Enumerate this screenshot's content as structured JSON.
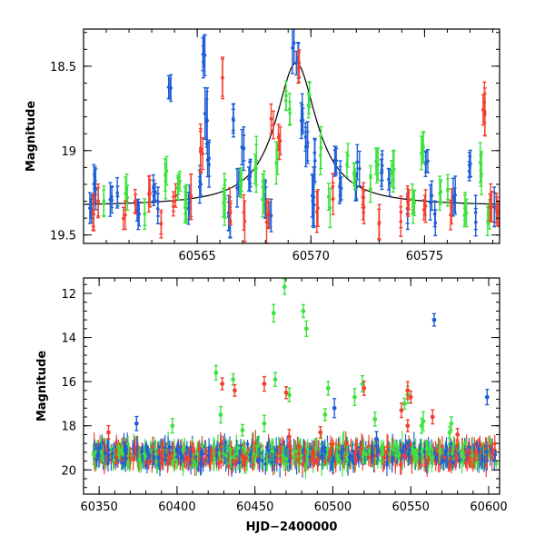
{
  "colors": {
    "blue": "#1f5fd6",
    "green": "#3ee23e",
    "red": "#f2412f",
    "model": "#000000"
  },
  "chart_data": [
    {
      "type": "scatter",
      "panel": "top",
      "title": "",
      "xlabel": "",
      "ylabel": "Magnitude",
      "xlim": [
        60560.0,
        60578.3
      ],
      "ylim": [
        19.55,
        18.28
      ],
      "y_inverted": true,
      "x_ticks": [
        60565,
        60570,
        60575
      ],
      "x_tick_labels": [
        "60565",
        "60570",
        "60575"
      ],
      "y_ticks": [
        18.5,
        19,
        19.5
      ],
      "y_tick_labels": [
        "18.5",
        "19",
        "19.5"
      ],
      "model_curve": {
        "baseline": 19.33,
        "peak_x": 60569.35,
        "peak_mag": 18.48,
        "width": 1.1
      },
      "series": [
        {
          "color": "blue",
          "points": [
            [
              60560.3,
              19.33,
              0.07
            ],
            [
              60560.5,
              19.2,
              0.1
            ],
            [
              60561.2,
              19.3,
              0.08
            ],
            [
              60561.5,
              19.25,
              0.07
            ],
            [
              60562.4,
              19.35,
              0.08
            ],
            [
              60563.1,
              19.25,
              0.07
            ],
            [
              60563.3,
              19.32,
              0.09
            ],
            [
              60563.8,
              18.62,
              0.07
            ],
            [
              60564.6,
              19.33,
              0.1
            ],
            [
              60565.1,
              19.2,
              0.08
            ],
            [
              60565.3,
              18.45,
              0.1
            ],
            [
              60565.4,
              18.8,
              0.15
            ],
            [
              60565.5,
              19.05,
              0.12
            ],
            [
              60566.4,
              19.4,
              0.1
            ],
            [
              60566.6,
              18.85,
              0.08
            ],
            [
              60566.8,
              19.2,
              0.1
            ],
            [
              60567.0,
              19.0,
              0.1
            ],
            [
              60567.3,
              19.15,
              0.08
            ],
            [
              60568.0,
              19.3,
              0.1
            ],
            [
              60568.2,
              19.35,
              0.09
            ],
            [
              60569.2,
              18.4,
              0.12
            ],
            [
              60569.4,
              18.45,
              0.08
            ],
            [
              60569.6,
              18.8,
              0.1
            ],
            [
              60569.8,
              18.95,
              0.1
            ],
            [
              60570.1,
              19.3,
              0.15
            ],
            [
              60570.2,
              19.05,
              0.1
            ],
            [
              60571.1,
              19.05,
              0.08
            ],
            [
              60571.3,
              19.2,
              0.08
            ],
            [
              60572.0,
              19.2,
              0.07
            ],
            [
              60572.1,
              19.1,
              0.08
            ],
            [
              60573.1,
              19.1,
              0.08
            ],
            [
              60573.4,
              19.2,
              0.08
            ],
            [
              60574.2,
              19.35,
              0.08
            ],
            [
              60575.1,
              19.05,
              0.08
            ],
            [
              60575.3,
              19.3,
              0.1
            ],
            [
              60575.5,
              19.4,
              0.1
            ],
            [
              60576.3,
              19.3,
              0.1
            ],
            [
              60577.0,
              19.1,
              0.08
            ],
            [
              60577.2,
              19.4,
              0.1
            ],
            [
              60578.1,
              19.3,
              0.1
            ]
          ]
        },
        {
          "color": "green",
          "points": [
            [
              60560.9,
              19.3,
              0.08
            ],
            [
              60561.9,
              19.25,
              0.08
            ],
            [
              60562.7,
              19.35,
              0.07
            ],
            [
              60563.6,
              19.15,
              0.08
            ],
            [
              60564.2,
              19.2,
              0.08
            ],
            [
              60564.5,
              19.3,
              0.1
            ],
            [
              60566.2,
              19.3,
              0.1
            ],
            [
              60566.9,
              19.2,
              0.1
            ],
            [
              60567.6,
              19.1,
              0.12
            ],
            [
              60567.9,
              19.25,
              0.1
            ],
            [
              60568.5,
              19.05,
              0.1
            ],
            [
              60568.9,
              18.7,
              0.08
            ],
            [
              60569.1,
              18.75,
              0.08
            ],
            [
              60569.9,
              18.7,
              0.07
            ],
            [
              60570.4,
              19.0,
              0.1
            ],
            [
              60570.8,
              19.3,
              0.1
            ],
            [
              60571.6,
              19.05,
              0.08
            ],
            [
              60571.9,
              19.15,
              0.07
            ],
            [
              60572.6,
              19.2,
              0.08
            ],
            [
              60572.9,
              19.05,
              0.08
            ],
            [
              60573.6,
              19.1,
              0.1
            ],
            [
              60574.5,
              19.3,
              0.08
            ],
            [
              60574.9,
              19.0,
              0.08
            ],
            [
              60575.7,
              19.25,
              0.08
            ],
            [
              60576.0,
              19.2,
              0.08
            ],
            [
              60576.8,
              19.35,
              0.08
            ],
            [
              60577.5,
              19.1,
              0.1
            ],
            [
              60577.8,
              19.4,
              0.08
            ]
          ]
        },
        {
          "color": "red",
          "points": [
            [
              60560.4,
              19.35,
              0.08
            ],
            [
              60560.7,
              19.3,
              0.1
            ],
            [
              60561.8,
              19.4,
              0.07
            ],
            [
              60562.3,
              19.3,
              0.08
            ],
            [
              60562.9,
              19.25,
              0.1
            ],
            [
              60563.4,
              19.4,
              0.08
            ],
            [
              60564.0,
              19.3,
              0.08
            ],
            [
              60564.7,
              19.3,
              0.12
            ],
            [
              60565.2,
              19.0,
              0.12
            ],
            [
              60566.1,
              18.55,
              0.1
            ],
            [
              60566.5,
              19.35,
              0.1
            ],
            [
              60567.1,
              19.4,
              0.1
            ],
            [
              60568.1,
              19.4,
              0.1
            ],
            [
              60568.3,
              18.85,
              0.1
            ],
            [
              60568.6,
              18.95,
              0.08
            ],
            [
              60569.5,
              18.5,
              0.07
            ],
            [
              60570.3,
              19.35,
              0.1
            ],
            [
              60571.0,
              19.25,
              0.08
            ],
            [
              60572.3,
              19.3,
              0.08
            ],
            [
              60573.0,
              19.4,
              0.1
            ],
            [
              60574.0,
              19.4,
              0.08
            ],
            [
              60574.3,
              19.3,
              0.08
            ],
            [
              60575.0,
              19.35,
              0.08
            ],
            [
              60576.2,
              19.35,
              0.08
            ],
            [
              60577.6,
              18.75,
              0.12
            ],
            [
              60577.9,
              19.3,
              0.1
            ],
            [
              60578.2,
              19.35,
              0.08
            ]
          ]
        }
      ]
    },
    {
      "type": "scatter",
      "panel": "bottom",
      "title": "",
      "xlabel": "HJD−2400000",
      "ylabel": "Magnitude",
      "xlim": [
        60340,
        60607
      ],
      "ylim": [
        21.1,
        11.3
      ],
      "y_inverted": true,
      "x_ticks": [
        60350,
        60400,
        60450,
        60500,
        60550,
        60600
      ],
      "x_tick_labels": [
        "60350",
        "60400",
        "60450",
        "60500",
        "60550",
        "60600"
      ],
      "y_ticks": [
        12,
        14,
        16,
        18,
        20
      ],
      "y_tick_labels": [
        "12",
        "14",
        "16",
        "18",
        "20"
      ],
      "baseline_band": {
        "x_start": 60346,
        "x_end": 60605,
        "mag": 19.3,
        "spread": 0.55
      },
      "series": [
        {
          "color": "green",
          "points": [
            [
              60469,
              11.7
            ],
            [
              60462,
              12.9
            ],
            [
              60481,
              12.8
            ],
            [
              60483,
              13.6
            ],
            [
              60425,
              15.6
            ],
            [
              60436,
              15.9
            ],
            [
              60463,
              15.9
            ],
            [
              60472,
              16.6
            ],
            [
              60497,
              16.3
            ],
            [
              60519,
              16.1
            ],
            [
              60514,
              16.7
            ],
            [
              60548,
              16.6
            ],
            [
              60546,
              17.0
            ],
            [
              60428,
              17.5
            ],
            [
              60495,
              17.5
            ],
            [
              60397,
              18.0
            ],
            [
              60527,
              17.7
            ],
            [
              60558,
              17.8
            ],
            [
              60557,
              18.0
            ],
            [
              60576,
              17.9
            ],
            [
              60456,
              17.9
            ],
            [
              60442,
              18.2
            ],
            [
              60575,
              18.3
            ]
          ]
        },
        {
          "color": "red",
          "points": [
            [
              60429,
              16.1
            ],
            [
              60437,
              16.4
            ],
            [
              60456,
              16.1
            ],
            [
              60470,
              16.5
            ],
            [
              60520,
              16.3
            ],
            [
              60548,
              16.4
            ],
            [
              60550,
              16.7
            ],
            [
              60544,
              17.3
            ],
            [
              60564,
              17.6
            ],
            [
              60548,
              18.0
            ],
            [
              60356,
              18.3
            ],
            [
              60472,
              18.5
            ],
            [
              60492,
              18.3
            ],
            [
              60580,
              18.4
            ]
          ]
        },
        {
          "color": "blue",
          "points": [
            [
              60565,
              13.2
            ],
            [
              60599,
              16.7
            ],
            [
              60501,
              17.2
            ],
            [
              60374,
              17.9
            ],
            [
              60528,
              18.6
            ]
          ]
        }
      ]
    }
  ]
}
